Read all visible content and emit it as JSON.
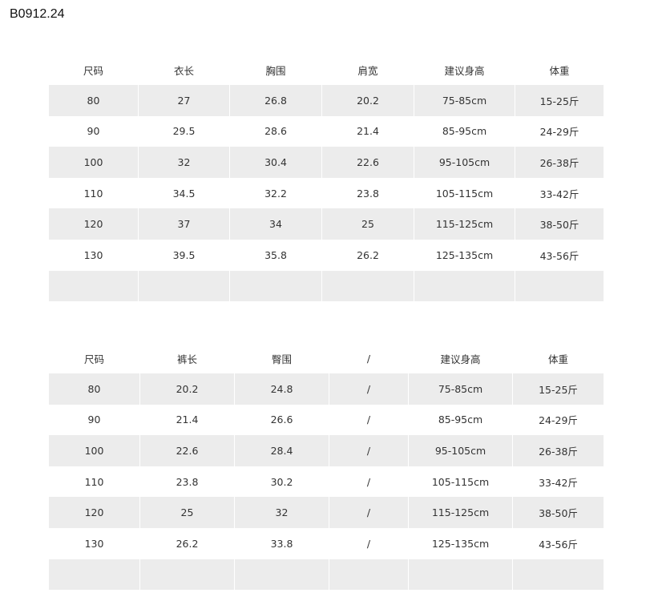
{
  "title": "B0912.24",
  "tables": [
    {
      "headers": [
        "尺码",
        "衣长",
        "胸围",
        "肩宽",
        "建议身高",
        "体重"
      ],
      "rows": [
        [
          "80",
          "27",
          "26.8",
          "20.2",
          "75-85cm",
          "15-25斤"
        ],
        [
          "90",
          "29.5",
          "28.6",
          "21.4",
          "85-95cm",
          "24-29斤"
        ],
        [
          "100",
          "32",
          "30.4",
          "22.6",
          "95-105cm",
          "26-38斤"
        ],
        [
          "110",
          "34.5",
          "32.2",
          "23.8",
          "105-115cm",
          "33-42斤"
        ],
        [
          "120",
          "37",
          "34",
          "25",
          "115-125cm",
          "38-50斤"
        ],
        [
          "130",
          "39.5",
          "35.8",
          "26.2",
          "125-135cm",
          "43-56斤"
        ],
        [
          "",
          "",
          "",
          "",
          "",
          ""
        ]
      ]
    },
    {
      "headers": [
        "尺码",
        "裤长",
        "臀围",
        "/",
        "建议身高",
        "体重"
      ],
      "rows": [
        [
          "80",
          "20.2",
          "24.8",
          "/",
          "75-85cm",
          "15-25斤"
        ],
        [
          "90",
          "21.4",
          "26.6",
          "/",
          "85-95cm",
          "24-29斤"
        ],
        [
          "100",
          "22.6",
          "28.4",
          "/",
          "95-105cm",
          "26-38斤"
        ],
        [
          "110",
          "23.8",
          "30.2",
          "/",
          "105-115cm",
          "33-42斤"
        ],
        [
          "120",
          "25",
          "32",
          "/",
          "115-125cm",
          "38-50斤"
        ],
        [
          "130",
          "26.2",
          "33.8",
          "/",
          "125-135cm",
          "43-56斤"
        ],
        [
          "",
          "",
          "",
          "",
          "",
          ""
        ]
      ]
    }
  ]
}
